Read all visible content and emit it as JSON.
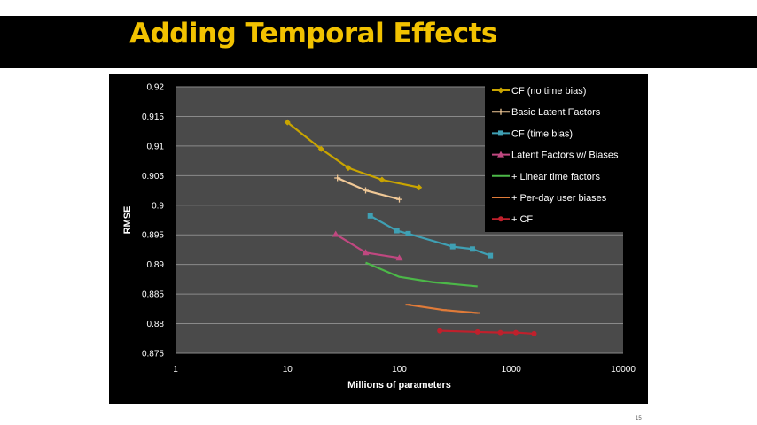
{
  "slide": {
    "title": "Adding Temporal Effects",
    "page_number": "15"
  },
  "chart_data": {
    "type": "line",
    "xlabel": "Millions of parameters",
    "ylabel": "RMSE",
    "x_scale": "log",
    "xlim": [
      1,
      10000
    ],
    "ylim": [
      0.875,
      0.92
    ],
    "x_ticks": [
      "1",
      "10",
      "100",
      "1000",
      "10000"
    ],
    "y_ticks": [
      "0.875",
      "0.88",
      "0.885",
      "0.89",
      "0.895",
      "0.9",
      "0.905",
      "0.91",
      "0.915",
      "0.92"
    ],
    "grid": "horizontal",
    "legend_position": "top-right",
    "series": [
      {
        "name": "CF (no time bias)",
        "color": "#c9a400",
        "marker": "diamond",
        "x": [
          10,
          20,
          35,
          70,
          150
        ],
        "y": [
          0.914,
          0.9095,
          0.9063,
          0.9043,
          0.903
        ]
      },
      {
        "name": "Basic Latent Factors",
        "color": "#f0c896",
        "marker": "plus",
        "x": [
          28,
          50,
          100
        ],
        "y": [
          0.9046,
          0.9025,
          0.901
        ]
      },
      {
        "name": "CF (time bias)",
        "color": "#3fa0b4",
        "marker": "square",
        "x": [
          55,
          95,
          120,
          300,
          450,
          650
        ],
        "y": [
          0.8982,
          0.8957,
          0.8952,
          0.893,
          0.8926,
          0.8915
        ]
      },
      {
        "name": "Latent Factors w/ Biases",
        "color": "#c04880",
        "marker": "triangle",
        "x": [
          27,
          50,
          100
        ],
        "y": [
          0.8951,
          0.892,
          0.8911
        ]
      },
      {
        "name": "+ Linear time factors",
        "color": "#4cb848",
        "marker": "none",
        "x": [
          50,
          100,
          200,
          500
        ],
        "y": [
          0.8903,
          0.8879,
          0.887,
          0.8863
        ]
      },
      {
        "name": "+ Per-day user biases",
        "color": "#e07b39",
        "marker": "dash",
        "x": [
          120,
          250,
          500
        ],
        "y": [
          0.8832,
          0.8823,
          0.8818
        ]
      },
      {
        "name": "+ CF",
        "color": "#c0202c",
        "marker": "circle",
        "x": [
          230,
          500,
          800,
          1100,
          1600
        ],
        "y": [
          0.8788,
          0.8786,
          0.8785,
          0.8785,
          0.8783
        ]
      }
    ]
  }
}
